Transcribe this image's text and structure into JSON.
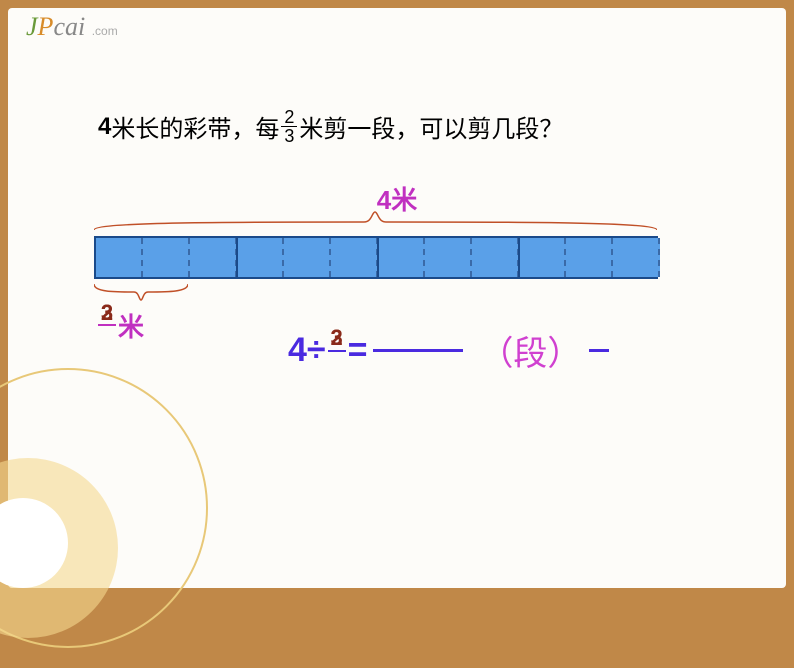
{
  "watermark": {
    "brand_j": "J",
    "brand_p": "P",
    "brand_rest": "cai",
    "domain": ".com"
  },
  "question": {
    "prefix_bold": "4",
    "text1": "米长的彩带，每",
    "frac_num": "2",
    "frac_den": "3",
    "text2": " 米剪一段，可以剪几段？"
  },
  "total_label": "4米",
  "bar": {
    "total_width": 564,
    "cells": 12,
    "solid_dividers_every": 2
  },
  "segment_label": {
    "frac_num": "2",
    "frac_den": "3",
    "suffix": "米",
    "overlay_num": "3"
  },
  "equation": {
    "left": "4÷",
    "frac_num": "2",
    "frac_den": "3",
    "overlay_num": "3",
    "mid": " =",
    "unit": "（段）"
  },
  "colors": {
    "frame": "#c08848",
    "slide_bg": "#fdfcf9",
    "purple": "#c030c0",
    "blue_text": "#4a2ae0",
    "bar_fill": "#5aa0e8",
    "bar_border": "#1a4a8a",
    "brown_frac": "#8a2a1a",
    "brace": "#c05028"
  }
}
